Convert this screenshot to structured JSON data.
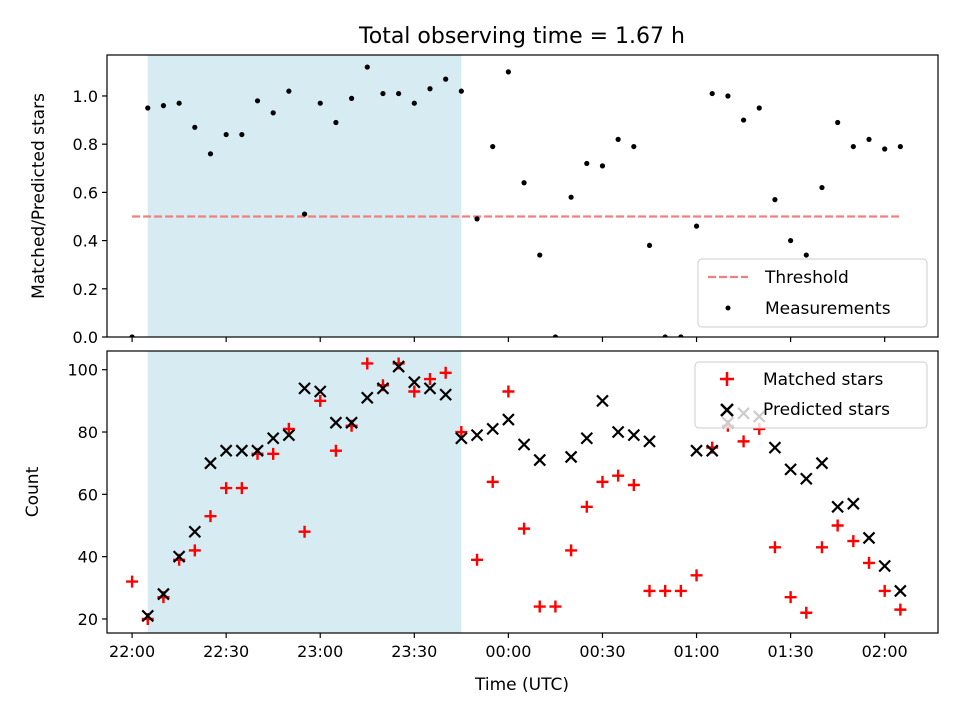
{
  "figure": {
    "title": "Total observing time = 1.67 h"
  },
  "chart_data": [
    {
      "type": "scatter",
      "title": "Total observing time = 1.67 h",
      "xlabel": "",
      "ylabel": "Matched/Predicted stars",
      "xlim": [
        "21:52",
        "02:17"
      ],
      "ylim": [
        0,
        1.17
      ],
      "y_ticks": [
        "0.0",
        "0.2",
        "0.4",
        "0.6",
        "0.8",
        "1.0"
      ],
      "x_ticks": [
        "22:00",
        "22:30",
        "23:00",
        "23:30",
        "00:00",
        "00:30",
        "01:00",
        "01:30",
        "02:00"
      ],
      "shaded_span": {
        "start": "22:05",
        "end": "23:45",
        "color": "#add8e6"
      },
      "threshold": {
        "name": "Threshold",
        "value": 0.5,
        "x_start": "22:00",
        "x_end": "02:05",
        "color": "#f08080",
        "style": "dashed"
      },
      "legend": {
        "placement": "lower-right",
        "entries": [
          "Threshold",
          "Measurements"
        ]
      },
      "grid": false,
      "series": [
        {
          "name": "Measurements",
          "marker": "dot",
          "color": "#000000",
          "x": [
            "22:00",
            "22:05",
            "22:10",
            "22:15",
            "22:20",
            "22:25",
            "22:30",
            "22:35",
            "22:40",
            "22:45",
            "22:50",
            "22:55",
            "23:00",
            "23:05",
            "23:10",
            "23:15",
            "23:20",
            "23:25",
            "23:30",
            "23:35",
            "23:40",
            "23:45",
            "23:50",
            "23:55",
            "00:00",
            "00:05",
            "00:10",
            "00:15",
            "00:20",
            "00:25",
            "00:30",
            "00:35",
            "00:40",
            "00:45",
            "00:50",
            "00:55",
            "01:00",
            "01:05",
            "01:10",
            "01:15",
            "01:20",
            "01:25",
            "01:30",
            "01:35",
            "01:40",
            "01:45",
            "01:50",
            "01:55",
            "02:00",
            "02:05"
          ],
          "y": [
            0.0,
            0.95,
            0.96,
            0.97,
            0.87,
            0.76,
            0.84,
            0.84,
            0.98,
            0.93,
            1.02,
            0.51,
            0.97,
            0.89,
            0.99,
            1.12,
            1.01,
            1.01,
            0.97,
            1.03,
            1.07,
            1.02,
            0.49,
            0.79,
            1.1,
            0.64,
            0.34,
            0.0,
            0.58,
            0.72,
            0.71,
            0.82,
            0.79,
            0.38,
            0.0,
            0.0,
            0.46,
            1.01,
            1.0,
            0.9,
            0.95,
            0.57,
            0.4,
            0.34,
            0.62,
            0.89,
            0.79,
            0.82,
            0.78,
            0.79
          ]
        }
      ]
    },
    {
      "type": "scatter",
      "title": "",
      "xlabel": "Time (UTC)",
      "ylabel": "Count",
      "xlim": [
        "21:52",
        "02:17"
      ],
      "ylim": [
        15.5,
        106
      ],
      "y_ticks": [
        "20",
        "40",
        "60",
        "80",
        "100"
      ],
      "x_ticks": [
        "22:00",
        "22:30",
        "23:00",
        "23:30",
        "00:00",
        "00:30",
        "01:00",
        "01:30",
        "02:00"
      ],
      "shaded_span": {
        "start": "22:05",
        "end": "23:45",
        "color": "#add8e6"
      },
      "legend": {
        "placement": "top-right",
        "entries": [
          "Matched stars",
          "Predicted stars"
        ]
      },
      "grid": false,
      "x": [
        "22:00",
        "22:05",
        "22:10",
        "22:15",
        "22:20",
        "22:25",
        "22:30",
        "22:35",
        "22:40",
        "22:45",
        "22:50",
        "22:55",
        "23:00",
        "23:05",
        "23:10",
        "23:15",
        "23:20",
        "23:25",
        "23:30",
        "23:35",
        "23:40",
        "23:45",
        "23:50",
        "23:55",
        "00:00",
        "00:05",
        "00:10",
        "00:15",
        "00:20",
        "00:25",
        "00:30",
        "00:35",
        "00:40",
        "00:45",
        "00:50",
        "00:55",
        "01:00",
        "01:05",
        "01:10",
        "01:15",
        "01:20",
        "01:25",
        "01:30",
        "01:35",
        "01:40",
        "01:45",
        "01:50",
        "01:55",
        "02:00",
        "02:05"
      ],
      "series": [
        {
          "name": "Matched stars",
          "marker": "plus",
          "color": "#ff0000",
          "values": [
            32,
            20,
            27,
            39,
            42,
            53,
            62,
            62,
            73,
            73,
            81,
            48,
            90,
            74,
            82,
            102,
            95,
            102,
            93,
            97,
            99,
            80,
            39,
            64,
            93,
            49,
            24,
            24,
            42,
            56,
            64,
            66,
            63,
            29,
            29,
            29,
            34,
            75,
            82,
            77,
            81,
            43,
            27,
            22,
            43,
            50,
            45,
            38,
            29,
            23
          ]
        },
        {
          "name": "Predicted stars",
          "marker": "x",
          "color": "#000000",
          "values": [
            null,
            21,
            28,
            40,
            48,
            70,
            74,
            74,
            74,
            78,
            79,
            94,
            93,
            83,
            83,
            91,
            94,
            101,
            96,
            94,
            92,
            78,
            79,
            81,
            84,
            76,
            71,
            null,
            72,
            78,
            90,
            80,
            79,
            77,
            null,
            null,
            74,
            74,
            83,
            86,
            85,
            75,
            68,
            65,
            70,
            56,
            57,
            46,
            37,
            29
          ]
        }
      ]
    }
  ]
}
